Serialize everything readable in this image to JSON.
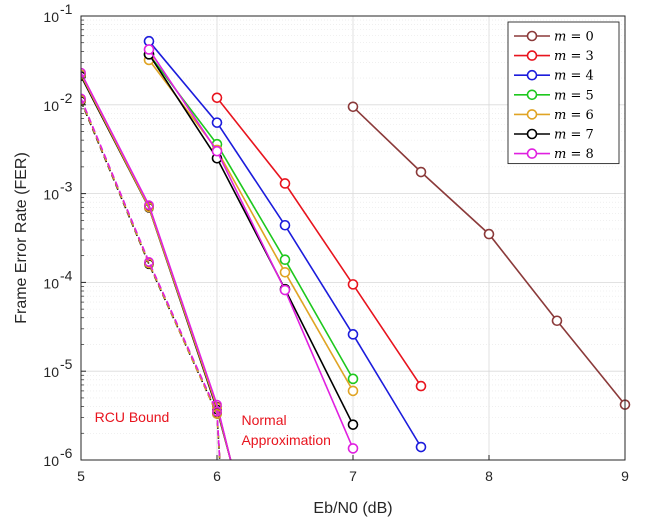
{
  "chart_data": {
    "type": "line",
    "xlabel": "Eb/N0 (dB)",
    "ylabel": "Frame Error Rate (FER)",
    "xlim": [
      5,
      9
    ],
    "ylim": [
      1e-06,
      0.1
    ],
    "yscale": "log",
    "grid": true,
    "legend_placement": "top-right",
    "x_ticks": [
      {
        "v": 5,
        "label": "5"
      },
      {
        "v": 6,
        "label": "6"
      },
      {
        "v": 7,
        "label": "7"
      },
      {
        "v": 8,
        "label": "8"
      },
      {
        "v": 9,
        "label": "9"
      }
    ],
    "y_ticks": [
      {
        "v": 1e-06,
        "base": "10",
        "exp": "-6"
      },
      {
        "v": 1e-05,
        "base": "10",
        "exp": "-5"
      },
      {
        "v": 0.0001,
        "base": "10",
        "exp": "-4"
      },
      {
        "v": 0.001,
        "base": "10",
        "exp": "-3"
      },
      {
        "v": 0.01,
        "base": "10",
        "exp": "-2"
      },
      {
        "v": 0.1,
        "base": "10",
        "exp": "-1"
      }
    ],
    "series": [
      {
        "name": "m = 0",
        "color": "#8b3a3a",
        "x": [
          7,
          7.5,
          8,
          8.5,
          9
        ],
        "y": [
          0.0095,
          0.00175,
          0.00035,
          3.7e-05,
          4.2e-06
        ]
      },
      {
        "name": "m = 3",
        "color": "#e8141e",
        "x": [
          6,
          6.5,
          7,
          7.5
        ],
        "y": [
          0.012,
          0.0013,
          9.5e-05,
          6.8e-06
        ]
      },
      {
        "name": "m = 4",
        "color": "#1c1cdc",
        "x": [
          5.5,
          6,
          6.5,
          7,
          7.5
        ],
        "y": [
          0.052,
          0.0063,
          0.00044,
          2.6e-05,
          1.4e-06
        ]
      },
      {
        "name": "m = 5",
        "color": "#1ec81e",
        "x": [
          5.5,
          6,
          6.5,
          7
        ],
        "y": [
          0.037,
          0.0036,
          0.00018,
          8.2e-06
        ]
      },
      {
        "name": "m = 6",
        "color": "#e0a424",
        "x": [
          5.5,
          6,
          6.5,
          7
        ],
        "y": [
          0.032,
          0.0031,
          0.00013,
          6e-06
        ]
      },
      {
        "name": "m = 7",
        "color": "#000000",
        "x": [
          5.5,
          6,
          6.5,
          7
        ],
        "y": [
          0.037,
          0.0025,
          8.4e-05,
          2.5e-06
        ]
      },
      {
        "name": "m = 8",
        "color": "#e020e0",
        "x": [
          5.5,
          6,
          6.5,
          7
        ],
        "y": [
          0.042,
          0.003,
          8.2e-05,
          1.35e-06
        ]
      }
    ],
    "bounds": {
      "normal_approximation": {
        "style": "solid",
        "curves": [
          {
            "color": "#8b3a3a",
            "x": [
              5,
              5.5,
              6,
              6.1
            ],
            "y": [
              0.022,
              0.00072,
              4e-06,
              1e-06
            ]
          },
          {
            "color": "#000000",
            "x": [
              5,
              5.5,
              6,
              6.1
            ],
            "y": [
              0.021,
              0.00069,
              3.7e-06,
              1e-06
            ]
          },
          {
            "color": "#e0a424",
            "x": [
              5,
              5.5,
              6,
              6.1
            ],
            "y": [
              0.022,
              0.0007,
              3.9e-06,
              1e-06
            ]
          },
          {
            "color": "#e020e0",
            "x": [
              5,
              5.5,
              6,
              6.1
            ],
            "y": [
              0.023,
              0.00074,
              4.2e-06,
              1e-06
            ]
          }
        ]
      },
      "rcu_bound": {
        "style": "dashed",
        "curves": [
          {
            "color": "#8b3a3a",
            "x": [
              5,
              5.5,
              6,
              6.02
            ],
            "y": [
              0.0115,
              0.000165,
              3.4e-06,
              1e-06
            ]
          },
          {
            "color": "#000000",
            "x": [
              5,
              5.5,
              6,
              6.02
            ],
            "y": [
              0.011,
              0.00016,
              3.3e-06,
              1e-06
            ]
          },
          {
            "color": "#e0a424",
            "x": [
              5,
              5.5,
              6,
              6.02
            ],
            "y": [
              0.0113,
              0.000163,
              3.3e-06,
              1e-06
            ]
          },
          {
            "color": "#e020e0",
            "x": [
              5,
              5.5,
              6,
              6.02
            ],
            "y": [
              0.0118,
              0.00017,
              3.5e-06,
              1e-06
            ]
          }
        ]
      }
    },
    "annotations": [
      {
        "lines": [
          "RCU Bound"
        ],
        "color": "#e8141e",
        "at": [
          5.1,
          1.7e-06
        ]
      },
      {
        "lines": [
          "Normal",
          "Approximation"
        ],
        "color": "#e8141e",
        "at": [
          6.18,
          1.7e-06
        ]
      }
    ],
    "legend": [
      {
        "prefix": "m",
        "eq": " = ",
        "num": "0",
        "color": "#8b3a3a"
      },
      {
        "prefix": "m",
        "eq": " = ",
        "num": "3",
        "color": "#e8141e"
      },
      {
        "prefix": "m",
        "eq": " = ",
        "num": "4",
        "color": "#1c1cdc"
      },
      {
        "prefix": "m",
        "eq": " = ",
        "num": "5",
        "color": "#1ec81e"
      },
      {
        "prefix": "m",
        "eq": " = ",
        "num": "6",
        "color": "#e0a424"
      },
      {
        "prefix": "m",
        "eq": " = ",
        "num": "7",
        "color": "#000000"
      },
      {
        "prefix": "m",
        "eq": " = ",
        "num": "8",
        "color": "#e020e0"
      }
    ]
  }
}
